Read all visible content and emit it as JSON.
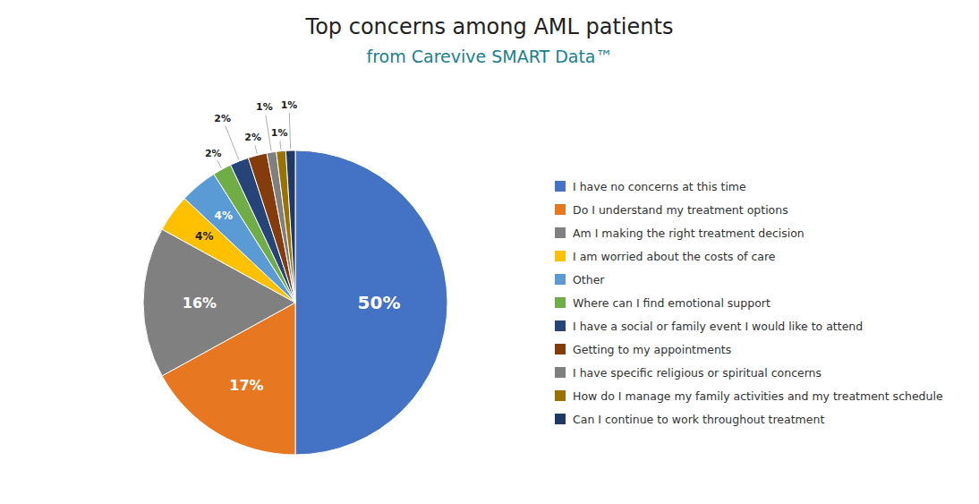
{
  "chart_data": {
    "type": "pie",
    "title": "Top concerns among AML patients",
    "subtitle": "from Carevive SMART Data™",
    "categories": [
      "I have no concerns at this time",
      "Do I understand my treatment options",
      "Am I making the right treatment decision",
      "I am worried about the costs of care",
      "Other",
      "Where can I find emotional support",
      "I have a social or family event I would like to attend",
      "Getting to my appointments",
      "I have specific religious or spiritual concerns",
      "How do I manage my family activities and my treatment schedule",
      "Can I continue to work throughout treatment"
    ],
    "values": [
      50,
      17,
      16,
      4,
      4,
      2,
      2,
      2,
      1,
      1,
      1
    ],
    "value_labels": [
      "50%",
      "17%",
      "16%",
      "4%",
      "4%",
      "2%",
      "2%",
      "2%",
      "1%",
      "1%",
      "1%"
    ],
    "colors": [
      "#4472C4",
      "#E87722",
      "#808080",
      "#FFC000",
      "#5B9BD5",
      "#70AD47",
      "#264478",
      "#843C0C",
      "#7F7F7F",
      "#997300",
      "#203864"
    ],
    "data_labels": true,
    "legend": "right"
  }
}
